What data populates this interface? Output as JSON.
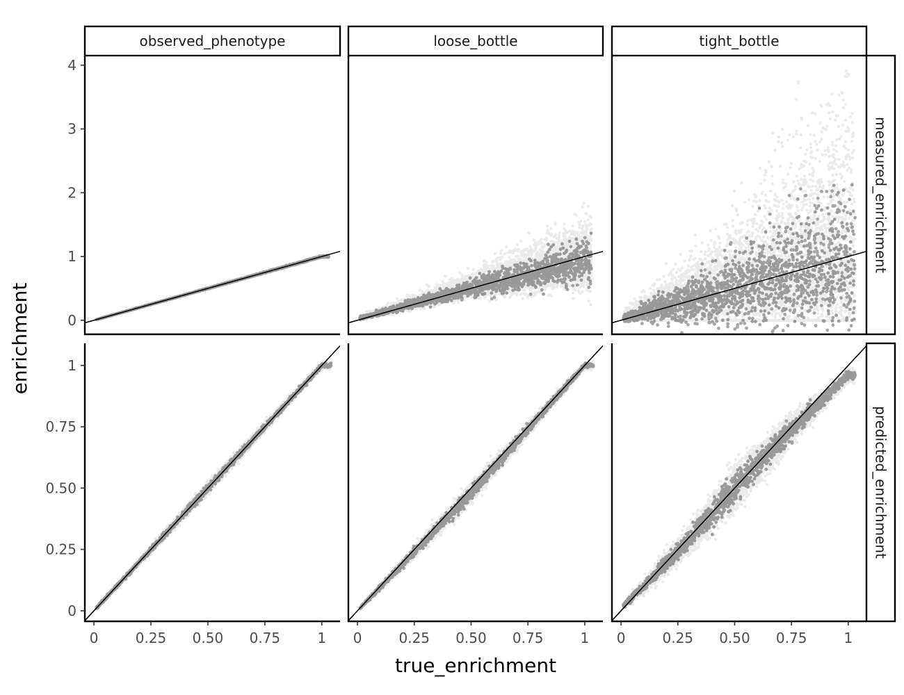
{
  "chart_data": {
    "type": "scatter",
    "facet": "grid",
    "xlabel": "true_enrichment",
    "ylabel": "enrichment",
    "columns": [
      "observed_phenotype",
      "loose_bottle",
      "tight_bottle"
    ],
    "rows": [
      "measured_enrichment",
      "predicted_enrichment"
    ],
    "xlim": [
      -0.04,
      1.08
    ],
    "x_ticks": [
      0,
      0.25,
      0.5,
      0.75,
      1
    ],
    "x_tick_labels": [
      "0",
      "0.25",
      "0.50",
      "0.75",
      "1"
    ],
    "row_scales": {
      "measured_enrichment": {
        "ylim": [
          -0.22,
          4.15
        ],
        "ticks": [
          0,
          1,
          2,
          3,
          4
        ],
        "tick_labels": [
          "0",
          "1",
          "2",
          "3",
          "4"
        ]
      },
      "predicted_enrichment": {
        "ylim": [
          -0.043,
          1.09
        ],
        "ticks": [
          0,
          0.25,
          0.5,
          0.75,
          1
        ],
        "tick_labels": [
          "0",
          "0.25",
          "0.50",
          "0.75",
          "1"
        ]
      }
    },
    "reference_line": {
      "slope": 1,
      "intercept": 0
    },
    "point_color": "#000000",
    "point_alpha": 0.08,
    "grid": false,
    "panels": [
      {
        "column": "observed_phenotype",
        "row": "measured_enrichment",
        "x_range": [
          0.01,
          1.03
        ],
        "y_trend": [
          [
            0,
            0
          ],
          [
            1,
            1
          ]
        ],
        "spread_lo": [
          [
            0,
            0.003
          ],
          [
            1,
            0.015
          ]
        ],
        "spread_hi": [
          [
            0,
            0.003
          ],
          [
            1,
            0.015
          ]
        ],
        "outliers_max_y": 1.03
      },
      {
        "column": "loose_bottle",
        "row": "measured_enrichment",
        "x_range": [
          0.01,
          1.03
        ],
        "y_trend": [
          [
            0,
            0.02
          ],
          [
            0.5,
            0.5
          ],
          [
            1,
            0.92
          ]
        ],
        "spread_lo": [
          [
            0,
            0.02
          ],
          [
            0.5,
            0.12
          ],
          [
            1,
            0.35
          ]
        ],
        "spread_hi": [
          [
            0,
            0.03
          ],
          [
            0.5,
            0.2
          ],
          [
            1,
            0.6
          ]
        ],
        "outliers_max_y": 1.85
      },
      {
        "column": "tight_bottle",
        "row": "measured_enrichment",
        "x_range": [
          0.01,
          1.03
        ],
        "y_trend": [
          [
            0,
            0.02
          ],
          [
            0.5,
            0.5
          ],
          [
            1,
            0.95
          ]
        ],
        "spread_lo": [
          [
            0,
            0.02
          ],
          [
            0.5,
            0.45
          ],
          [
            1,
            0.9
          ]
        ],
        "spread_hi": [
          [
            0,
            0.1
          ],
          [
            0.5,
            0.9
          ],
          [
            1,
            2.2
          ]
        ],
        "outliers_max_y": 3.92,
        "zero_floor": true
      },
      {
        "column": "observed_phenotype",
        "row": "predicted_enrichment",
        "x_range": [
          0.01,
          1.04
        ],
        "y_trend": [
          [
            0,
            0.0
          ],
          [
            1,
            1.0
          ]
        ],
        "spread_lo": [
          [
            0,
            0.005
          ],
          [
            0.5,
            0.02
          ],
          [
            1,
            0.01
          ]
        ],
        "spread_hi": [
          [
            0,
            0.005
          ],
          [
            0.5,
            0.02
          ],
          [
            1,
            0.01
          ]
        ],
        "outliers_max_y": 1.04
      },
      {
        "column": "loose_bottle",
        "row": "predicted_enrichment",
        "x_range": [
          0.01,
          1.04
        ],
        "y_trend": [
          [
            0,
            0.0
          ],
          [
            0.5,
            0.48
          ],
          [
            1,
            1.0
          ]
        ],
        "spread_lo": [
          [
            0,
            0.005
          ],
          [
            0.5,
            0.035
          ],
          [
            1,
            0.01
          ]
        ],
        "spread_hi": [
          [
            0,
            0.005
          ],
          [
            0.5,
            0.035
          ],
          [
            1,
            0.01
          ]
        ],
        "outliers_max_y": 1.04
      },
      {
        "column": "tight_bottle",
        "row": "predicted_enrichment",
        "x_range": [
          0.01,
          1.03
        ],
        "y_trend": [
          [
            0,
            0.01
          ],
          [
            0.25,
            0.24
          ],
          [
            0.5,
            0.5
          ],
          [
            0.75,
            0.74
          ],
          [
            1,
            0.96
          ]
        ],
        "spread_lo": [
          [
            0,
            0.01
          ],
          [
            0.5,
            0.08
          ],
          [
            1,
            0.02
          ]
        ],
        "spread_hi": [
          [
            0,
            0.01
          ],
          [
            0.5,
            0.08
          ],
          [
            1,
            0.02
          ]
        ],
        "outliers_max_y": 1.0
      }
    ]
  }
}
